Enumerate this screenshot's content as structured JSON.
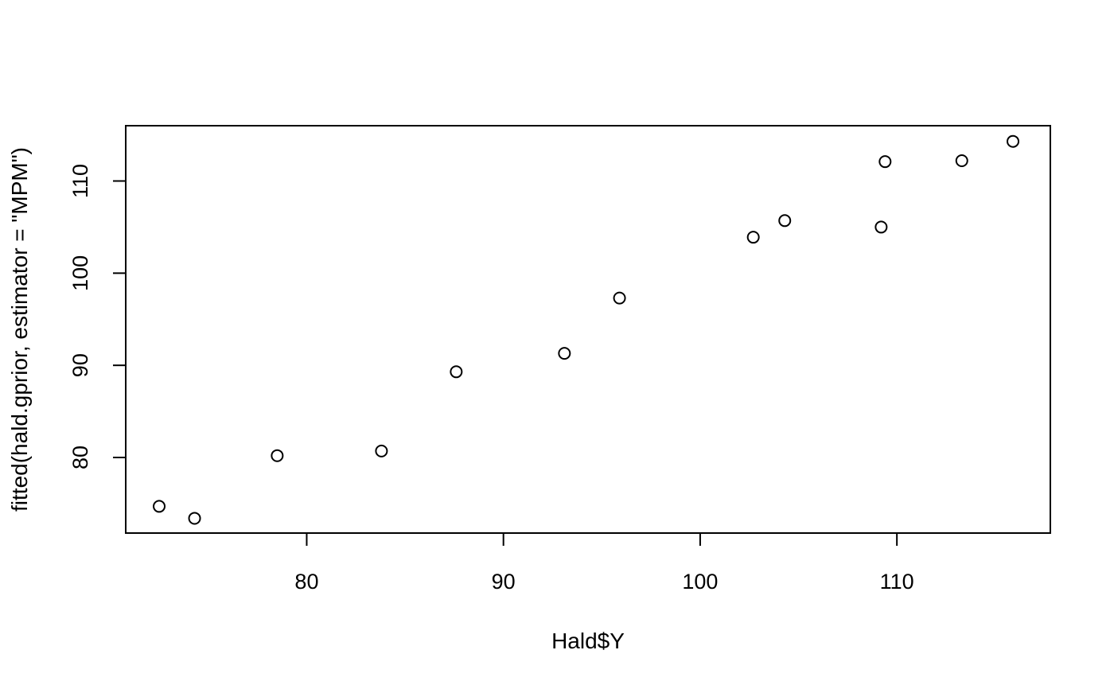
{
  "chart_data": {
    "type": "scatter",
    "title": "",
    "xlabel": "Hald$Y",
    "ylabel": "fitted(hald.gprior, estimator = \"MPM\")",
    "xlim": [
      70.8,
      117.8
    ],
    "ylim": [
      71.8,
      116.0
    ],
    "xticks": [
      80,
      90,
      100,
      110
    ],
    "yticks": [
      80,
      90,
      100,
      110
    ],
    "x_tick_labels": [
      "80",
      "90",
      "100",
      "110"
    ],
    "y_tick_labels": [
      "80",
      "90",
      "100",
      "110"
    ],
    "grid": false,
    "marker": "open-circle",
    "series": [
      {
        "points": [
          {
            "x": 72.5,
            "y": 74.7
          },
          {
            "x": 74.3,
            "y": 73.4
          },
          {
            "x": 78.5,
            "y": 80.2
          },
          {
            "x": 83.8,
            "y": 80.7
          },
          {
            "x": 87.6,
            "y": 89.3
          },
          {
            "x": 93.1,
            "y": 91.3
          },
          {
            "x": 95.9,
            "y": 97.3
          },
          {
            "x": 102.7,
            "y": 103.9
          },
          {
            "x": 104.3,
            "y": 105.7
          },
          {
            "x": 109.2,
            "y": 105.0
          },
          {
            "x": 109.4,
            "y": 112.1
          },
          {
            "x": 113.3,
            "y": 112.2
          },
          {
            "x": 115.9,
            "y": 114.3
          }
        ]
      }
    ]
  }
}
